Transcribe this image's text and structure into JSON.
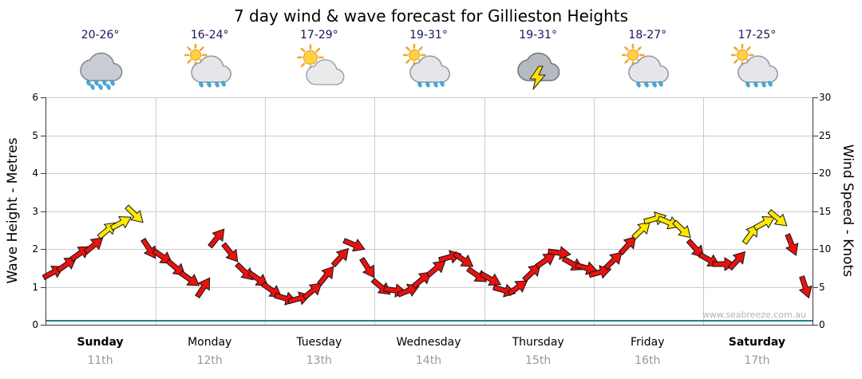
{
  "title": "7 day wind & wave forecast for Gillieston Heights",
  "watermark": "www.seabreeze.com.au",
  "days": [
    {
      "name": "Sunday",
      "date": "11th",
      "temp": "20-26°",
      "icon": "rain",
      "bold": true
    },
    {
      "name": "Monday",
      "date": "12th",
      "temp": "16-24°",
      "icon": "sun-rain",
      "bold": false
    },
    {
      "name": "Tuesday",
      "date": "13th",
      "temp": "17-29°",
      "icon": "sun-cloud",
      "bold": false
    },
    {
      "name": "Wednesday",
      "date": "14th",
      "temp": "19-31°",
      "icon": "sun-rain",
      "bold": false
    },
    {
      "name": "Thursday",
      "date": "15th",
      "temp": "19-31°",
      "icon": "storm",
      "bold": false
    },
    {
      "name": "Friday",
      "date": "16th",
      "temp": "18-27°",
      "icon": "sun-rain",
      "bold": false
    },
    {
      "name": "Saturday",
      "date": "17th",
      "temp": "17-25°",
      "icon": "sun-rain",
      "bold": true
    }
  ],
  "chart_data": {
    "type": "line",
    "title": "7 day wind & wave forecast for Gillieston Heights",
    "x": {
      "days": [
        "Sunday 11th",
        "Monday 12th",
        "Tuesday 13th",
        "Wednesday 14th",
        "Thursday 15th",
        "Friday 16th",
        "Saturday 17th"
      ],
      "points_per_day": 8,
      "hours_step": 3
    },
    "y_left": {
      "label": "Wave Height - Metres",
      "range": [
        0,
        6
      ],
      "ticks": [
        0,
        1,
        2,
        3,
        4,
        5,
        6
      ]
    },
    "y_right": {
      "label": "Wind Speed - Knots",
      "range": [
        0,
        30
      ],
      "ticks": [
        0,
        5,
        10,
        15,
        20,
        25,
        30
      ]
    },
    "grid": true,
    "series": [
      {
        "name": "Wind speed (knots, 3-hourly wind arrows)",
        "type": "arrows",
        "values": [
          7,
          8,
          9.5,
          10.5,
          12.5,
          13.5,
          14.5,
          10,
          9,
          7.5,
          6,
          5,
          11.5,
          9.5,
          7,
          6,
          4.5,
          3.5,
          3.5,
          4.5,
          6.5,
          9,
          10.5,
          7.5,
          5,
          4.5,
          4.5,
          6,
          7.5,
          9,
          8.5,
          6.5,
          6,
          4.5,
          5,
          7,
          8.5,
          9.5,
          8,
          7.5,
          7,
          8.5,
          10.5,
          12.5,
          14,
          13.5,
          12.5,
          10,
          8.5,
          8,
          8.5,
          12,
          13.5,
          14,
          10.5,
          5
        ]
      },
      {
        "name": "Wave height (metres)",
        "type": "line",
        "constant_value": 0.1,
        "color": "#1d8490"
      }
    ],
    "arrow_colors": {
      "moderate": "#e8120f",
      "strong": "#ffe800",
      "strong_threshold_knots": 12,
      "outline": "#141414"
    }
  }
}
